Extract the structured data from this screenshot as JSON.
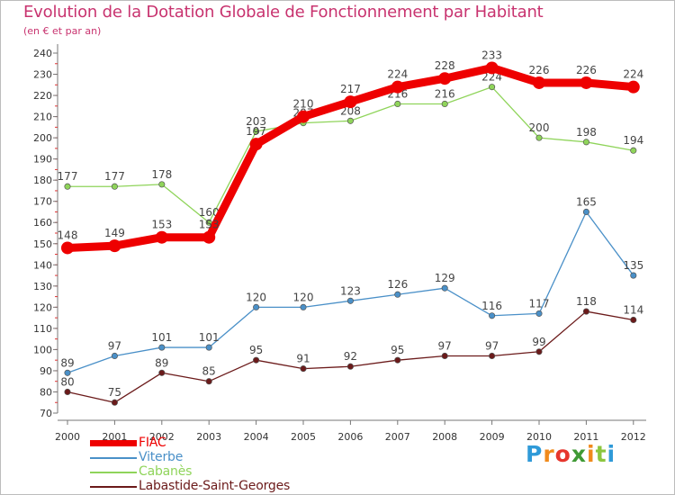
{
  "page": {
    "title": "Evolution de la Dotation Globale de Fonctionnement par Habitant",
    "subtitle": "(en € et par an)"
  },
  "logo": {
    "text": "Proxiti"
  },
  "chart_data": {
    "type": "line",
    "x": [
      "2000",
      "2001",
      "2002",
      "2003",
      "2004",
      "2005",
      "2006",
      "2007",
      "2008",
      "2009",
      "2010",
      "2011",
      "2012"
    ],
    "ylim": [
      70,
      240
    ],
    "yticks": [
      70,
      80,
      90,
      100,
      110,
      120,
      130,
      140,
      150,
      160,
      170,
      180,
      190,
      200,
      210,
      220,
      230,
      240
    ],
    "grid": false,
    "legend_position": "bottom-left",
    "series": [
      {
        "name": "Labastide-Saint-Georges",
        "color": "#6b1a1a",
        "values": [
          80,
          75,
          89,
          85,
          95,
          91,
          92,
          95,
          97,
          97,
          99,
          118,
          114
        ]
      },
      {
        "name": "Viterbe",
        "color": "#4a90c8",
        "values": [
          89,
          97,
          101,
          101,
          120,
          120,
          123,
          126,
          129,
          116,
          117,
          165,
          135
        ]
      },
      {
        "name": "Cabanès",
        "color": "#8fd45a",
        "values": [
          177,
          177,
          178,
          160,
          203,
          207,
          208,
          216,
          216,
          224,
          200,
          198,
          194
        ]
      },
      {
        "name": "FIAC",
        "color": "#ee0000",
        "values": [
          148,
          149,
          153,
          153,
          197,
          210,
          217,
          224,
          228,
          233,
          226,
          226,
          224
        ]
      }
    ]
  }
}
